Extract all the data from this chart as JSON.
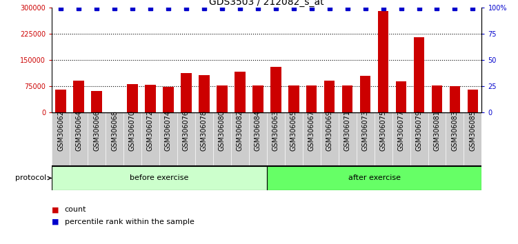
{
  "title": "GDS3503 / 212082_s_at",
  "categories": [
    "GSM306062",
    "GSM306064",
    "GSM306066",
    "GSM306068",
    "GSM306070",
    "GSM306072",
    "GSM306074",
    "GSM306076",
    "GSM306078",
    "GSM306080",
    "GSM306082",
    "GSM306084",
    "GSM306063",
    "GSM306065",
    "GSM306067",
    "GSM306069",
    "GSM306071",
    "GSM306073",
    "GSM306075",
    "GSM306077",
    "GSM306079",
    "GSM306081",
    "GSM306083",
    "GSM306085"
  ],
  "bar_values": [
    65000,
    90000,
    60000,
    0,
    80000,
    78000,
    72000,
    112000,
    107000,
    77000,
    115000,
    77000,
    130000,
    77000,
    77000,
    90000,
    77000,
    105000,
    290000,
    88000,
    215000,
    77000,
    75000,
    65000
  ],
  "percentile_values": [
    99,
    99,
    99,
    99,
    99,
    99,
    99,
    99,
    99,
    99,
    99,
    99,
    99,
    99,
    99,
    99,
    99,
    99,
    99,
    99,
    99,
    99,
    99,
    99
  ],
  "bar_color": "#cc0000",
  "percentile_color": "#0000cc",
  "ylim_left": [
    0,
    300000
  ],
  "ylim_right": [
    0,
    100
  ],
  "yticks_left": [
    0,
    75000,
    150000,
    225000,
    300000
  ],
  "ytick_labels_left": [
    "0",
    "75000",
    "150000",
    "225000",
    "300000"
  ],
  "yticks_right": [
    0,
    25,
    50,
    75,
    100
  ],
  "ytick_labels_right": [
    "0",
    "25",
    "50",
    "75",
    "100%"
  ],
  "before_exercise_count": 12,
  "after_exercise_count": 12,
  "protocol_label": "protocol",
  "before_label": "before exercise",
  "after_label": "after exercise",
  "before_color": "#ccffcc",
  "after_color": "#66ff66",
  "legend_count_label": "count",
  "legend_percentile_label": "percentile rank within the sample",
  "background_color": "#ffffff",
  "plot_bg_color": "#ffffff",
  "gray_band_color": "#cccccc",
  "grid_lines": [
    75000,
    150000,
    225000
  ],
  "title_fontsize": 10,
  "axis_label_fontsize": 8,
  "tick_fontsize": 7
}
